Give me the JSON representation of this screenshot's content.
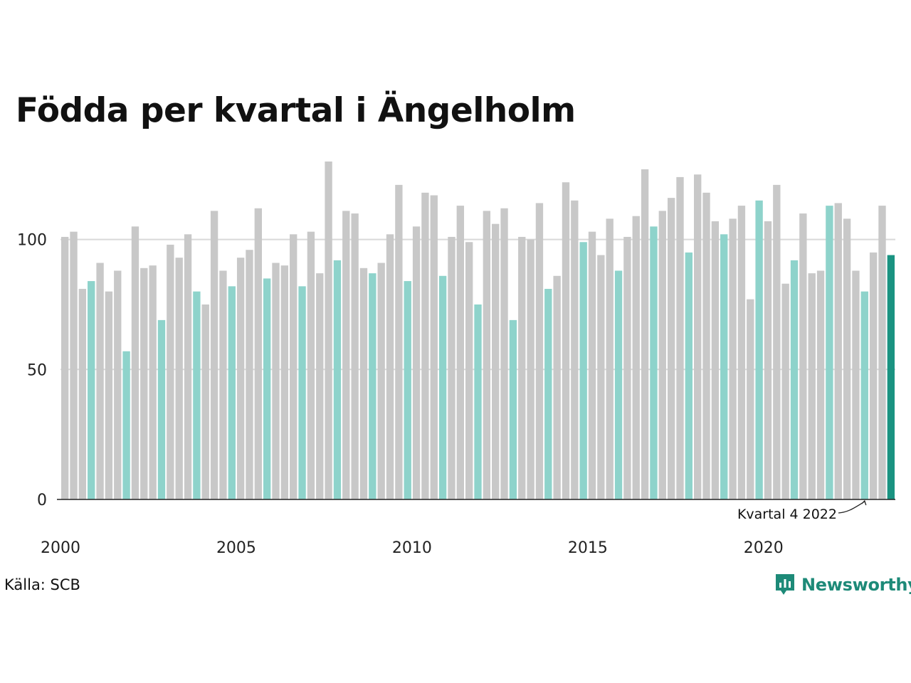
{
  "title": "Födda per kvartal i Ängelholm",
  "source": "Källa: SCB",
  "brand": {
    "name": "Newsworthy",
    "icon": "newsworthy-logo-icon",
    "color": "#1d8a78"
  },
  "colors": {
    "bar_default": "#c8c8c8",
    "bar_q4": "#8ed3cb",
    "bar_latest": "#1a9381",
    "gridline": "#d9d9d9",
    "axis": "#222222"
  },
  "chart_data": {
    "type": "bar",
    "start_year": 2000,
    "highlight_quarter": 4,
    "values": [
      101,
      103,
      81,
      84,
      91,
      80,
      88,
      57,
      105,
      89,
      90,
      69,
      98,
      93,
      102,
      80,
      75,
      111,
      88,
      82,
      93,
      96,
      112,
      85,
      91,
      90,
      102,
      82,
      103,
      87,
      130,
      92,
      111,
      110,
      89,
      87,
      91,
      102,
      121,
      84,
      105,
      118,
      117,
      86,
      101,
      113,
      99,
      75,
      111,
      106,
      112,
      69,
      101,
      100,
      114,
      81,
      86,
      122,
      115,
      99,
      103,
      94,
      108,
      88,
      101,
      109,
      127,
      105,
      111,
      116,
      124,
      95,
      125,
      118,
      107,
      102,
      108,
      113,
      77,
      115,
      107,
      121,
      83,
      92,
      110,
      87,
      88,
      113,
      114,
      108,
      88,
      80,
      95,
      113,
      94
    ],
    "ylim": [
      0,
      130
    ],
    "yticks": [
      0,
      50,
      100
    ],
    "xtick_labels": [
      "2000",
      "2005",
      "2010",
      "2015",
      "2020"
    ],
    "grid": true,
    "annotation": "Kvartal 4 2022"
  }
}
